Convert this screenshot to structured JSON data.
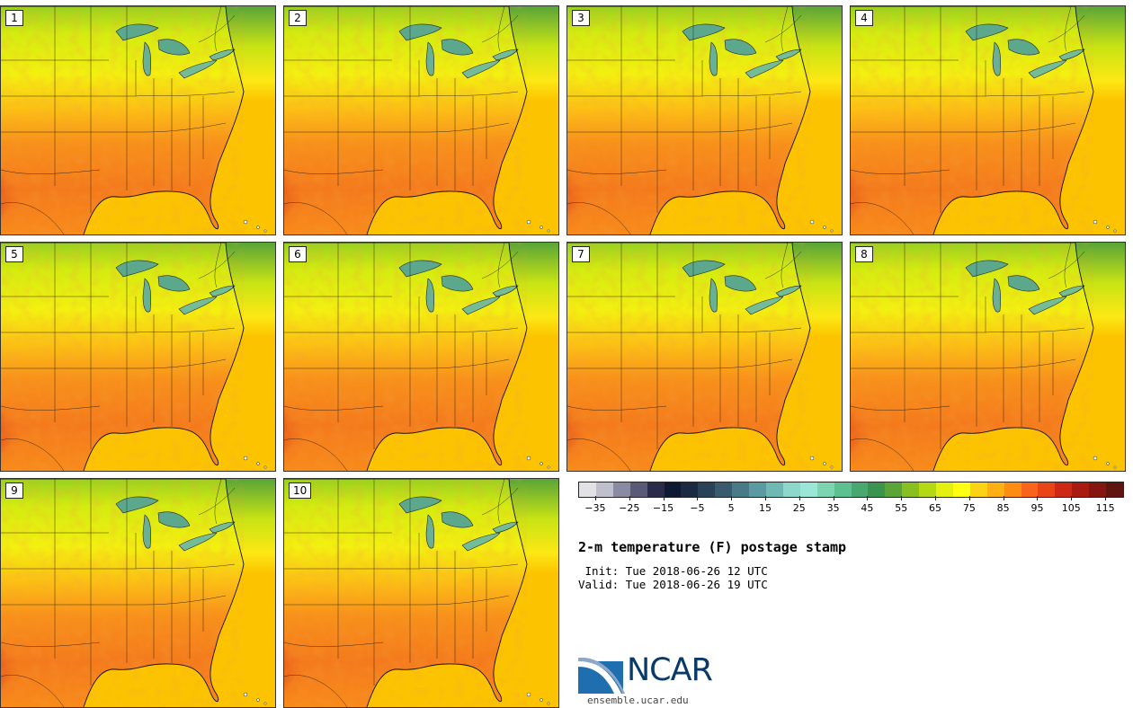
{
  "panels": [
    {
      "label": "1"
    },
    {
      "label": "2"
    },
    {
      "label": "3"
    },
    {
      "label": "4"
    },
    {
      "label": "5"
    },
    {
      "label": "6"
    },
    {
      "label": "7"
    },
    {
      "label": "8"
    },
    {
      "label": "9"
    },
    {
      "label": "10"
    }
  ],
  "colorbar": {
    "colors": [
      "#e2e2e6",
      "#c0c0cc",
      "#8a8aa0",
      "#5a5a78",
      "#2a2a4a",
      "#0e1a34",
      "#1a2a44",
      "#2a4258",
      "#3a5a70",
      "#4a7a88",
      "#5a9aa0",
      "#70b8b4",
      "#8cd8cc",
      "#9ce6d8",
      "#7cd4b0",
      "#5cc090",
      "#48a870",
      "#3a9450",
      "#5aa438",
      "#88c020",
      "#b4d814",
      "#e4f010",
      "#ffff14",
      "#fcd214",
      "#fcb014",
      "#fc8c14",
      "#f8641c",
      "#e84418",
      "#cc2814",
      "#a81c10",
      "#861410",
      "#601410"
    ],
    "tick_labels": [
      "−35",
      "−25",
      "−15",
      "−5",
      "5",
      "15",
      "25",
      "35",
      "45",
      "55",
      "65",
      "75",
      "85",
      "95",
      "105",
      "115"
    ],
    "min": -40,
    "max": 120
  },
  "title": "2-m temperature (F) postage stamp",
  "init_line": " Init: Tue 2018-06-26 12 UTC",
  "valid_line": "Valid: Tue 2018-06-26 19 UTC",
  "logo": {
    "name": "NCAR",
    "url": "ensemble.ucar.edu"
  }
}
